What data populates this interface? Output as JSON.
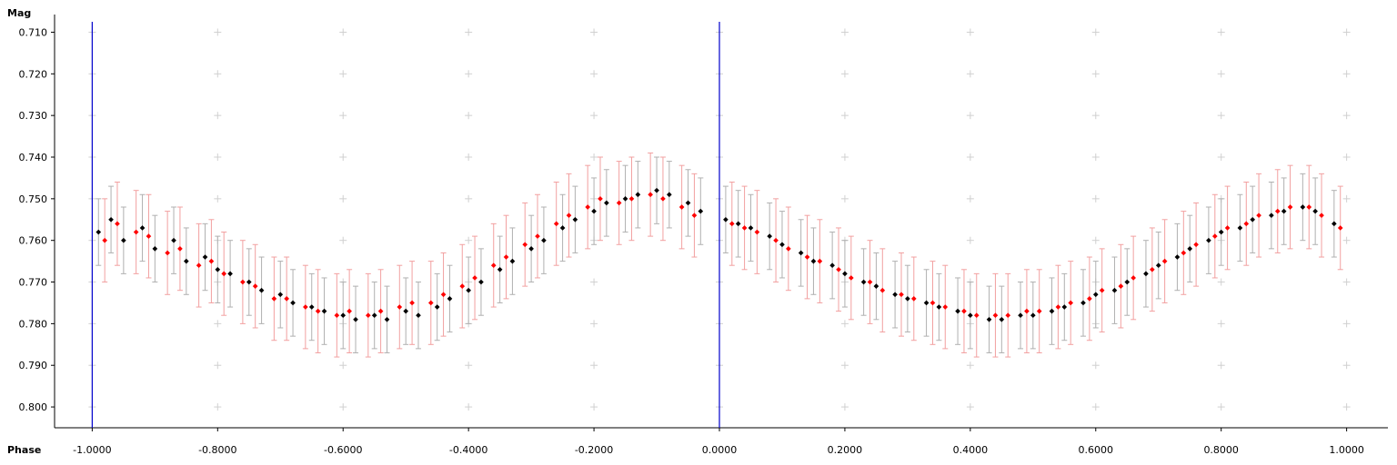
{
  "chart_data": {
    "type": "scatter",
    "title": "",
    "xlabel": "Phase",
    "ylabel": "Mag",
    "xlim": [
      -1.06,
      1.06
    ],
    "ylim": [
      0.7075,
      0.805
    ],
    "y_inverted": true,
    "x_ticks": [
      -1.0,
      -0.8,
      -0.6,
      -0.4,
      -0.2,
      0.0,
      0.2,
      0.4,
      0.6,
      0.8,
      1.0
    ],
    "x_tick_labels": [
      "-1.0000",
      "-0.8000",
      "-0.6000",
      "-0.4000",
      "-0.2000",
      "0.0000",
      "0.2000",
      "0.4000",
      "0.6000",
      "0.8000",
      "1.0000"
    ],
    "y_ticks": [
      0.71,
      0.72,
      0.73,
      0.74,
      0.75,
      0.76,
      0.77,
      0.78,
      0.79,
      0.8
    ],
    "y_tick_labels": [
      "0.710",
      "0.720",
      "0.730",
      "0.740",
      "0.750",
      "0.760",
      "0.770",
      "0.780",
      "0.790",
      "0.800"
    ],
    "grid": "cross-markers",
    "vertical_lines": [
      -1.0,
      0.0
    ],
    "vertical_line_color": "#0000cc",
    "series": [
      {
        "color": "#000000",
        "errorbar_color": "#b0b0b0",
        "x": [
          -0.99,
          -0.97,
          -0.95,
          -0.92,
          -0.9,
          -0.87,
          -0.85,
          -0.82,
          -0.8,
          -0.78,
          -0.75,
          -0.73,
          -0.7,
          -0.68,
          -0.65,
          -0.63,
          -0.6,
          -0.58,
          -0.55,
          -0.53,
          -0.5,
          -0.48,
          -0.45,
          -0.43,
          -0.4,
          -0.38,
          -0.35,
          -0.33,
          -0.3,
          -0.28,
          -0.25,
          -0.23,
          -0.2,
          -0.18,
          -0.15,
          -0.13,
          -0.1,
          -0.08,
          -0.05,
          -0.03,
          0.01,
          0.03,
          0.05,
          0.08,
          0.1,
          0.13,
          0.15,
          0.18,
          0.2,
          0.23,
          0.25,
          0.28,
          0.3,
          0.33,
          0.35,
          0.38,
          0.4,
          0.43,
          0.45,
          0.48,
          0.5,
          0.53,
          0.55,
          0.58,
          0.6,
          0.63,
          0.65,
          0.68,
          0.7,
          0.73,
          0.75,
          0.78,
          0.8,
          0.83,
          0.85,
          0.88,
          0.9,
          0.93,
          0.95,
          0.98
        ],
        "y": [
          0.758,
          0.755,
          0.76,
          0.757,
          0.762,
          0.76,
          0.765,
          0.764,
          0.767,
          0.768,
          0.77,
          0.772,
          0.773,
          0.775,
          0.776,
          0.777,
          0.778,
          0.779,
          0.778,
          0.779,
          0.777,
          0.778,
          0.776,
          0.774,
          0.772,
          0.77,
          0.767,
          0.765,
          0.762,
          0.76,
          0.757,
          0.755,
          0.753,
          0.751,
          0.75,
          0.749,
          0.748,
          0.749,
          0.751,
          0.753,
          0.755,
          0.756,
          0.757,
          0.759,
          0.761,
          0.763,
          0.765,
          0.766,
          0.768,
          0.77,
          0.771,
          0.773,
          0.774,
          0.775,
          0.776,
          0.777,
          0.778,
          0.779,
          0.779,
          0.778,
          0.778,
          0.777,
          0.776,
          0.775,
          0.773,
          0.772,
          0.77,
          0.768,
          0.766,
          0.764,
          0.762,
          0.76,
          0.758,
          0.757,
          0.755,
          0.754,
          0.753,
          0.752,
          0.753,
          0.756
        ],
        "err": 0.008
      },
      {
        "color": "#ff0000",
        "errorbar_color": "#f2a0a0",
        "x": [
          -0.98,
          -0.96,
          -0.93,
          -0.91,
          -0.88,
          -0.86,
          -0.83,
          -0.81,
          -0.79,
          -0.76,
          -0.74,
          -0.71,
          -0.69,
          -0.66,
          -0.64,
          -0.61,
          -0.59,
          -0.56,
          -0.54,
          -0.51,
          -0.49,
          -0.46,
          -0.44,
          -0.41,
          -0.39,
          -0.36,
          -0.34,
          -0.31,
          -0.29,
          -0.26,
          -0.24,
          -0.21,
          -0.19,
          -0.16,
          -0.14,
          -0.11,
          -0.09,
          -0.06,
          -0.04,
          0.02,
          0.04,
          0.06,
          0.09,
          0.11,
          0.14,
          0.16,
          0.19,
          0.21,
          0.24,
          0.26,
          0.29,
          0.31,
          0.34,
          0.36,
          0.39,
          0.41,
          0.44,
          0.46,
          0.49,
          0.51,
          0.54,
          0.56,
          0.59,
          0.61,
          0.64,
          0.66,
          0.69,
          0.71,
          0.74,
          0.76,
          0.79,
          0.81,
          0.84,
          0.86,
          0.89,
          0.91,
          0.94,
          0.96,
          0.99
        ],
        "y": [
          0.76,
          0.756,
          0.758,
          0.759,
          0.763,
          0.762,
          0.766,
          0.765,
          0.768,
          0.77,
          0.771,
          0.774,
          0.774,
          0.776,
          0.777,
          0.778,
          0.777,
          0.778,
          0.777,
          0.776,
          0.775,
          0.775,
          0.773,
          0.771,
          0.769,
          0.766,
          0.764,
          0.761,
          0.759,
          0.756,
          0.754,
          0.752,
          0.75,
          0.751,
          0.75,
          0.749,
          0.75,
          0.752,
          0.754,
          0.756,
          0.757,
          0.758,
          0.76,
          0.762,
          0.764,
          0.765,
          0.767,
          0.769,
          0.77,
          0.772,
          0.773,
          0.774,
          0.775,
          0.776,
          0.777,
          0.778,
          0.778,
          0.778,
          0.777,
          0.777,
          0.776,
          0.775,
          0.774,
          0.772,
          0.771,
          0.769,
          0.767,
          0.765,
          0.763,
          0.761,
          0.759,
          0.757,
          0.756,
          0.754,
          0.753,
          0.752,
          0.752,
          0.754,
          0.757
        ],
        "err": 0.01
      }
    ]
  }
}
